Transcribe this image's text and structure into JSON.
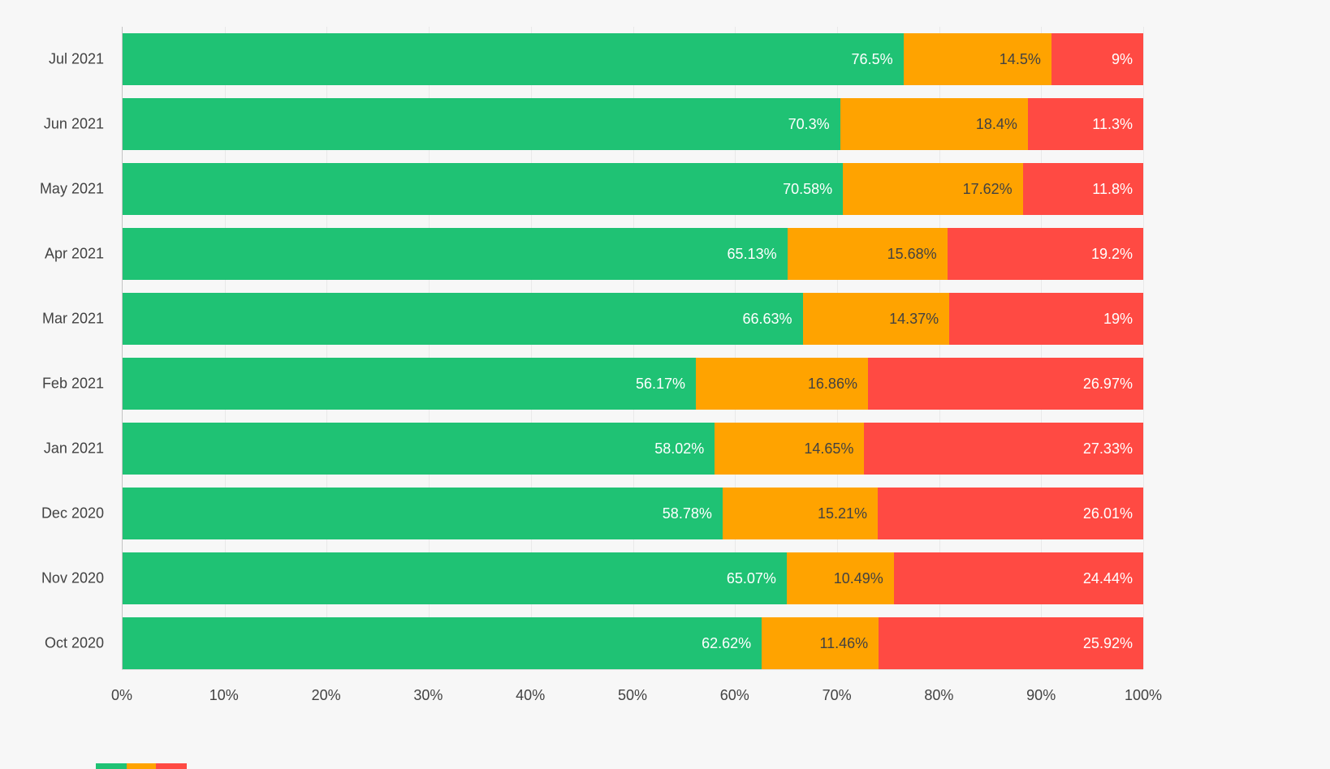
{
  "page": {
    "background": "#f7f7f7"
  },
  "chart_data": {
    "type": "bar",
    "orientation": "horizontal",
    "stacked": true,
    "title": "",
    "xlabel": "",
    "ylabel": "",
    "xlim": [
      0,
      100
    ],
    "grid": true,
    "legend": "none",
    "categories": [
      "Jul 2021",
      "Jun 2021",
      "May 2021",
      "Apr 2021",
      "Mar 2021",
      "Feb 2021",
      "Jan 2021",
      "Dec 2020",
      "Nov 2020",
      "Oct 2020"
    ],
    "x_ticks": [
      "0%",
      "10%",
      "20%",
      "30%",
      "40%",
      "50%",
      "60%",
      "70%",
      "80%",
      "90%",
      "100%"
    ],
    "series": [
      {
        "name": "green",
        "color": "#1fc274",
        "label_color": "#ffffff",
        "values": [
          76.5,
          70.3,
          70.58,
          65.13,
          66.63,
          56.17,
          58.02,
          58.78,
          65.07,
          62.62
        ],
        "labels": [
          "76.5%",
          "70.3%",
          "70.58%",
          "65.13%",
          "66.63%",
          "56.17%",
          "58.02%",
          "58.78%",
          "65.07%",
          "62.62%"
        ]
      },
      {
        "name": "orange",
        "color": "#ffa300",
        "label_color": "#424242",
        "values": [
          14.5,
          18.4,
          17.62,
          15.68,
          14.37,
          16.86,
          14.65,
          15.21,
          10.49,
          11.46
        ],
        "labels": [
          "14.5%",
          "18.4%",
          "17.62%",
          "15.68%",
          "14.37%",
          "16.86%",
          "14.65%",
          "15.21%",
          "10.49%",
          "11.46%"
        ]
      },
      {
        "name": "red",
        "color": "#ff4a43",
        "label_color": "#ffffff",
        "values": [
          9,
          11.3,
          11.8,
          19.2,
          19,
          26.97,
          27.33,
          26.01,
          24.44,
          25.92
        ],
        "labels": [
          "9%",
          "11.3%",
          "11.8%",
          "19.2%",
          "19%",
          "26.97%",
          "27.33%",
          "26.01%",
          "24.44%",
          "25.92%"
        ]
      }
    ]
  },
  "cutoff_bar": {
    "segments": [
      {
        "name": "green",
        "color": "#1fc274",
        "width": 38
      },
      {
        "name": "orange",
        "color": "#ffa300",
        "width": 36
      },
      {
        "name": "red",
        "color": "#ff4a43",
        "width": 38
      }
    ]
  }
}
